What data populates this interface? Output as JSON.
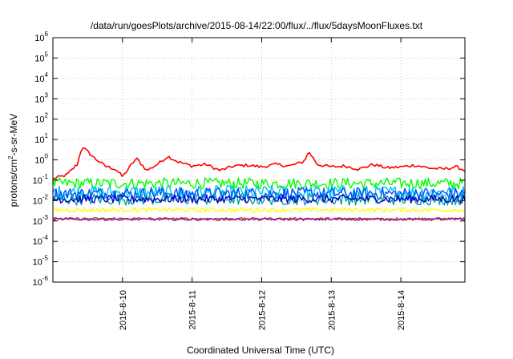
{
  "chart_data": {
    "type": "line",
    "title": "/data/run/goesPlots/archive/2015-08-14/22:00/flux/../flux/5daysMoonFluxes.txt",
    "xlabel": "Coordinated Universal Time (UTC)",
    "ylabel": {
      "prefix": "protons/cm",
      "sup": "2",
      "suffix": "-s-sr-MeV"
    },
    "y_scale": "log",
    "ylim": [
      1e-06,
      1000000.0
    ],
    "x_range_days": [
      "2015-08-09 00:00",
      "2015-08-14 22:00"
    ],
    "x_ticks": [
      "2015-8-10",
      "2015-8-11",
      "2015-8-12",
      "2015-8-13",
      "2015-8-14"
    ],
    "y_ticks": [
      {
        "base": "10",
        "exp": "-6"
      },
      {
        "base": "10",
        "exp": "-5"
      },
      {
        "base": "10",
        "exp": "-4"
      },
      {
        "base": "10",
        "exp": "-3"
      },
      {
        "base": "10",
        "exp": "-2"
      },
      {
        "base": "10",
        "exp": "-1"
      },
      {
        "base": "10",
        "exp": "0"
      },
      {
        "base": "10",
        "exp": "1"
      },
      {
        "base": "10",
        "exp": "2"
      },
      {
        "base": "10",
        "exp": "3"
      },
      {
        "base": "10",
        "exp": "4"
      },
      {
        "base": "10",
        "exp": "5"
      },
      {
        "base": "10",
        "exp": "6"
      }
    ],
    "grid": true,
    "series": [
      {
        "color": "#ff0000",
        "base": 0.45,
        "noise": 0.25,
        "x": [
          0,
          0.2,
          0.35,
          0.42,
          0.5,
          0.6,
          0.75,
          0.9,
          1.0,
          1.2,
          1.35,
          1.5,
          1.65,
          1.8,
          2.0,
          2.2,
          2.4,
          2.6,
          2.8,
          3.0,
          3.2,
          3.4,
          3.6,
          3.68,
          3.8,
          4.0,
          4.2,
          4.4,
          4.6,
          4.8,
          5.0,
          5.2,
          5.4,
          5.6,
          5.8,
          5.92
        ],
        "y": [
          0.12,
          0.18,
          0.6,
          4.5,
          2.5,
          1.2,
          0.5,
          0.35,
          0.15,
          1.2,
          0.3,
          0.6,
          1.5,
          0.8,
          0.5,
          0.6,
          0.3,
          0.5,
          0.55,
          0.45,
          0.6,
          0.5,
          0.8,
          2.5,
          0.6,
          0.45,
          0.5,
          0.35,
          0.6,
          0.4,
          0.45,
          0.55,
          0.4,
          0.35,
          0.45,
          0.3
        ]
      },
      {
        "color": "#00ff00",
        "base": 0.07,
        "noise": 0.55
      },
      {
        "color": "#00bfff",
        "base": 0.025,
        "noise": 0.7
      },
      {
        "color": "#0050ff",
        "base": 0.022,
        "noise": 0.6
      },
      {
        "color": "#00a0a0",
        "base": 0.012,
        "noise": 0.6
      },
      {
        "color": "#0000cc",
        "base": 0.012,
        "noise": 0.4
      },
      {
        "color": "#ffff00",
        "base": 0.0035,
        "noise": 0.2
      },
      {
        "color": "#a05020",
        "base": 0.0013,
        "noise": 0.1
      },
      {
        "color": "#a000a0",
        "base": 0.0012,
        "noise": 0.1
      }
    ]
  }
}
